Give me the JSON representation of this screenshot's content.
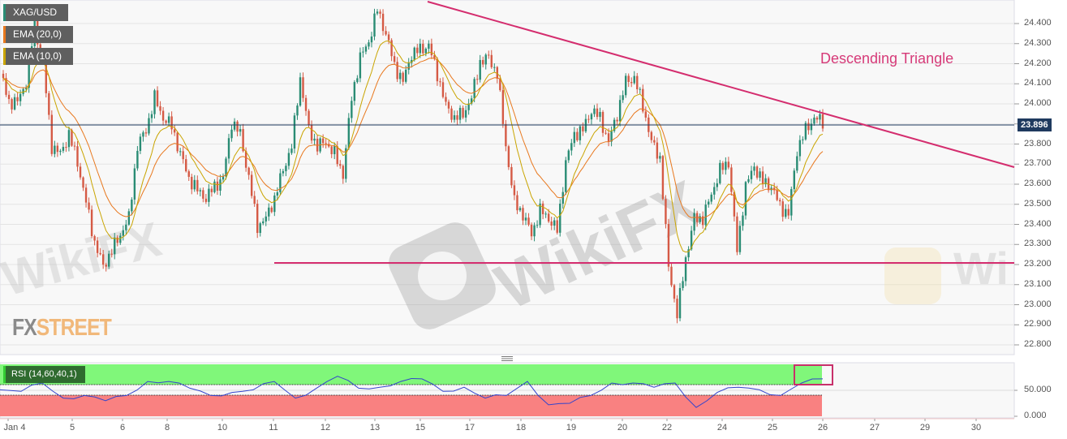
{
  "legend": {
    "symbol": "XAG/USD",
    "ema20": "EMA (20,0)",
    "ema10": "EMA (10,0)",
    "rsi": "RSI (14,60,40,1)"
  },
  "annotation": "Descending Triangle",
  "watermarks": {
    "fxstreet_a": "FX",
    "fxstreet_b": "STREET",
    "wikifx": "WikiFX"
  },
  "colors": {
    "up": "#2a8c74",
    "down": "#d55a45",
    "ema20": "#e8781e",
    "ema10": "#c9a400",
    "trendline": "#d42d6e",
    "price_line": "#1f3a5f",
    "rsi_line": "#3344cc",
    "rsi_overbought": "#80f77a",
    "rsi_oversold": "#f98181"
  },
  "chart_data": {
    "type": "candlestick",
    "title": "",
    "y_axis": {
      "ticks": [
        "24.400",
        "24.300",
        "24.200",
        "24.100",
        "24.000",
        "23.900",
        "23.800",
        "23.700",
        "23.600",
        "23.500",
        "23.400",
        "23.300",
        "23.200",
        "23.100",
        "23.000",
        "22.900",
        "22.800"
      ],
      "range": [
        22.77,
        24.51
      ]
    },
    "x_axis": {
      "ticks": [
        "Jan 4",
        "5",
        "6",
        "8",
        "10",
        "11",
        "12",
        "13",
        "15",
        "17",
        "18",
        "19",
        "20",
        "22",
        "24",
        "25",
        "26",
        "27",
        "29",
        "30"
      ]
    },
    "current_price": "23.896",
    "closes": [
      24.15,
      24.01,
      24.01,
      24.11,
      24.39,
      24.19,
      23.79,
      23.75,
      23.85,
      23.71,
      23.51,
      23.31,
      23.19,
      23.27,
      23.35,
      23.43,
      23.79,
      23.87,
      24.03,
      23.93,
      23.89,
      23.75,
      23.63,
      23.57,
      23.53,
      23.59,
      23.63,
      23.91,
      23.85,
      23.63,
      23.39,
      23.43,
      23.53,
      23.67,
      23.79,
      24.13,
      23.87,
      23.79,
      23.81,
      23.75,
      23.65,
      24.03,
      24.23,
      24.31,
      24.47,
      24.35,
      24.19,
      24.11,
      24.25,
      24.27,
      24.29,
      24.15,
      23.99,
      23.93,
      23.95,
      24.03,
      24.21,
      24.23,
      24.15,
      23.79,
      23.51,
      23.45,
      23.35,
      23.47,
      23.43,
      23.37,
      23.71,
      23.85,
      23.87,
      23.97,
      23.93,
      23.81,
      23.95,
      24.11,
      24.13,
      23.99,
      23.81,
      23.73,
      23.19,
      22.95,
      23.23,
      23.43,
      23.43,
      23.55,
      23.67,
      23.71,
      23.27,
      23.59,
      23.69,
      23.61,
      23.59,
      23.49,
      23.45,
      23.77,
      23.87,
      23.93,
      23.91
    ],
    "ema_periods": [
      20,
      10
    ],
    "trendlines": {
      "descending_resistance": {
        "from": 24.49,
        "to_at_right_edge": 23.68
      },
      "horizontal_support": 23.21
    },
    "rsi": {
      "period": 14,
      "upper": 60,
      "lower": 40,
      "y_ticks": [
        "50.000",
        "0.000"
      ],
      "values": [
        51,
        48,
        64,
        35,
        40,
        30,
        40,
        67,
        67,
        54,
        40,
        46,
        51,
        67,
        35,
        54,
        77,
        54,
        56,
        67,
        72,
        48,
        56,
        35,
        40,
        67,
        22,
        25,
        40,
        64,
        64,
        56,
        64,
        17,
        46,
        56,
        51,
        40,
        64,
        72
      ]
    }
  }
}
